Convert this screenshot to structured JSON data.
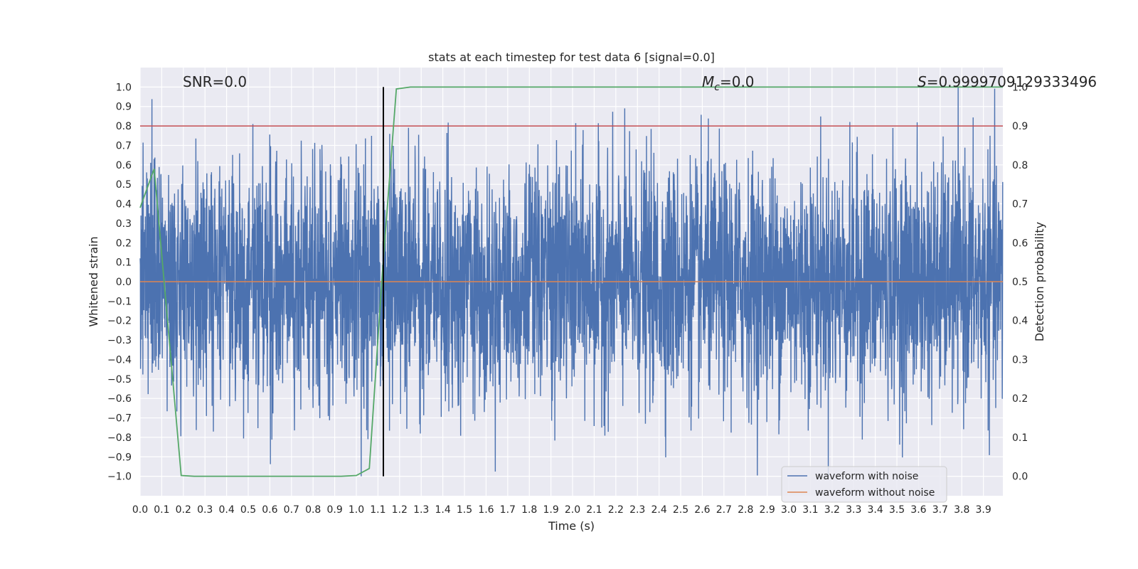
{
  "chart_data": {
    "type": "line",
    "title": "stats at each timestep for test data 6 [signal=0.0]",
    "xlabel": "Time (s)",
    "ylabel": "Whitened strain",
    "y2label": "Detection probability",
    "xlim": [
      0.0,
      3.99
    ],
    "ylim": [
      -1.1,
      1.1
    ],
    "y2lim": [
      -0.05,
      1.05
    ],
    "grid": true,
    "xticks": [
      "0.0",
      "0.1",
      "0.2",
      "0.3",
      "0.4",
      "0.5",
      "0.6",
      "0.7",
      "0.8",
      "0.9",
      "1.0",
      "1.1",
      "1.2",
      "1.3",
      "1.4",
      "1.5",
      "1.6",
      "1.7",
      "1.8",
      "1.9",
      "2.0",
      "2.1",
      "2.2",
      "2.3",
      "2.4",
      "2.5",
      "2.6",
      "2.7",
      "2.8",
      "2.9",
      "3.0",
      "3.1",
      "3.2",
      "3.3",
      "3.4",
      "3.5",
      "3.6",
      "3.7",
      "3.8",
      "3.9"
    ],
    "yticks": [
      "1.0",
      "0.9",
      "0.8",
      "0.7",
      "0.6",
      "0.5",
      "0.4",
      "0.3",
      "0.2",
      "0.1",
      "0.0",
      "−0.1",
      "−0.2",
      "−0.3",
      "−0.4",
      "−0.5",
      "−0.6",
      "−0.7",
      "−0.8",
      "−0.9",
      "−1.0"
    ],
    "y2ticks": [
      "1.0",
      "0.9",
      "0.8",
      "0.7",
      "0.6",
      "0.5",
      "0.4",
      "0.3",
      "0.2",
      "0.1",
      "0.0"
    ],
    "annotations": {
      "snr": "SNR=0.0",
      "mc_symbol": "M",
      "mc_sub": "c",
      "mc_value": "=0.0",
      "s_symbol": "S",
      "s_value": "=0.9999709129333496"
    },
    "legend": {
      "position": "lower right",
      "entries": [
        "waveform with noise",
        "waveform without noise"
      ]
    },
    "colors": {
      "noise": "#4c72b0",
      "clean": "#dd8452",
      "probability": "#55a868",
      "threshold": "#c44e52",
      "marker": "#000000",
      "plot_bg": "#eaeaf2"
    },
    "series": [
      {
        "name": "waveform with noise",
        "kind": "noise",
        "sample_rate": 1024,
        "duration": 3.99,
        "amplitude_clip": [
          -1.0,
          1.0
        ]
      },
      {
        "name": "waveform without noise",
        "x": [
          0.0,
          3.99
        ],
        "y": [
          0.0,
          0.0
        ]
      },
      {
        "axis": "right",
        "x": [
          0.0,
          0.065,
          0.19,
          0.25,
          0.5,
          0.75,
          0.93,
          1.0,
          1.06,
          1.12,
          1.185,
          1.25,
          1.5,
          2.0,
          2.5,
          3.0,
          3.5,
          3.99
        ],
        "y": [
          0.69,
          0.79,
          0.002,
          0.0,
          0.0,
          0.0,
          0.0,
          0.002,
          0.02,
          0.52,
          0.995,
          1.0,
          1.0,
          1.0,
          1.0,
          1.0,
          1.0,
          1.0
        ]
      },
      {
        "axis": "left",
        "kind": "hline",
        "y": 0.8
      },
      {
        "axis": "left",
        "kind": "vline",
        "x": 1.125,
        "y_range": [
          -1.0,
          1.0
        ]
      }
    ]
  }
}
